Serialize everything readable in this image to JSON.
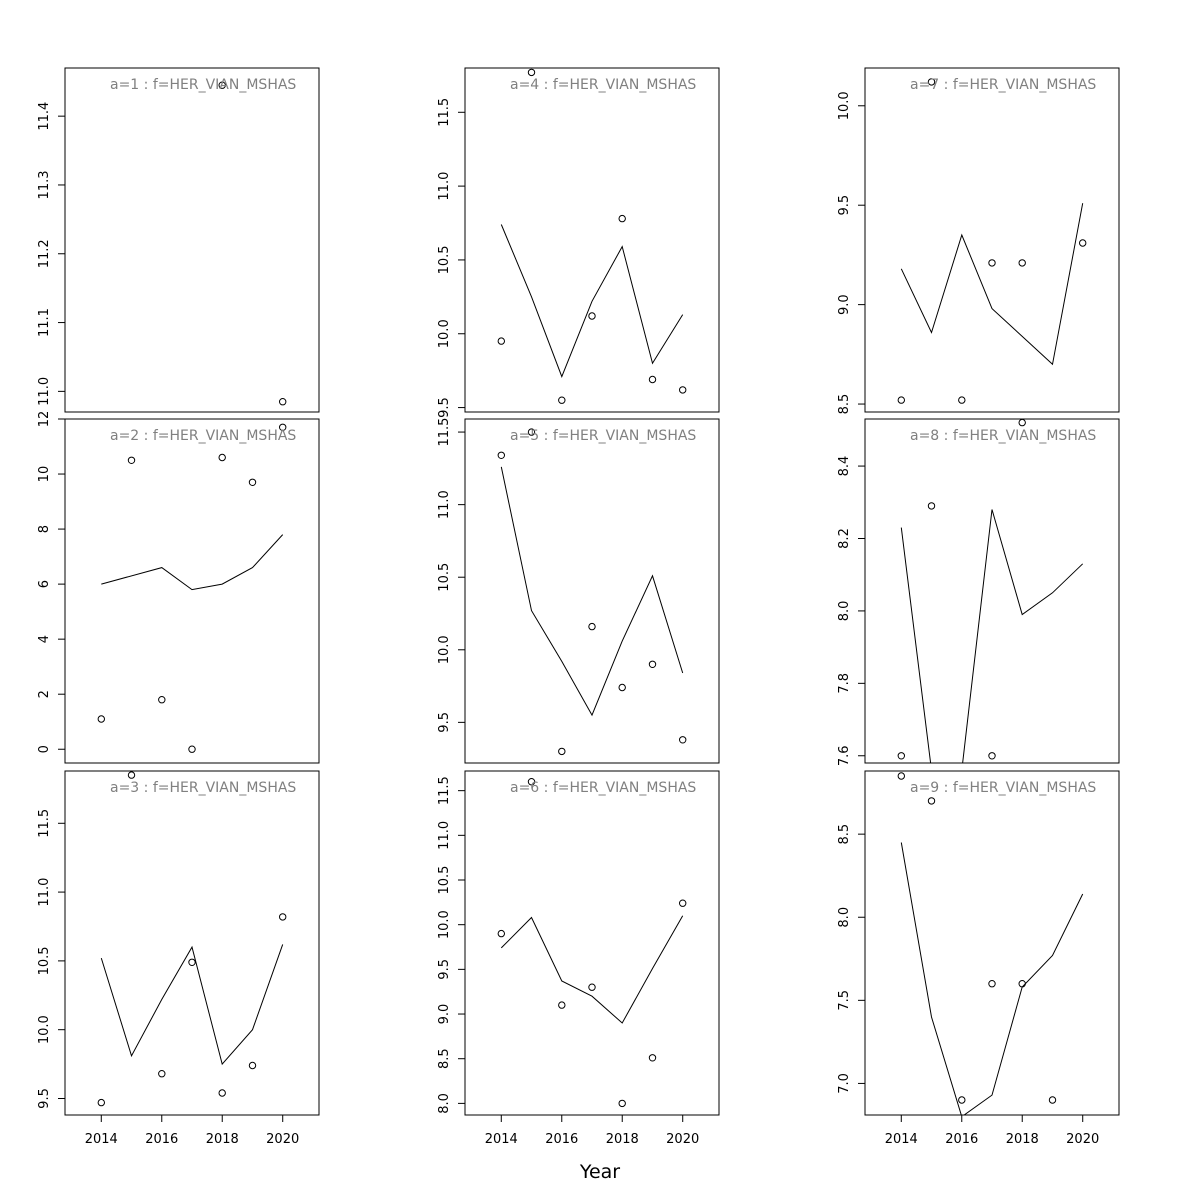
{
  "figure": {
    "xlabel": "Year",
    "panel_title_color": "#808080",
    "line_color": "#000000",
    "point_color": "#000000"
  },
  "chart_data": [
    {
      "type": "line",
      "title": "a=1 : f=HER_VIAN_MSHAS",
      "x": [
        2014,
        2015,
        2016,
        2017,
        2018,
        2019,
        2020
      ],
      "points": [
        [
          2018,
          11.445
        ],
        [
          2020,
          10.985
        ]
      ],
      "line": [],
      "xlim": [
        2012.8,
        2021.2
      ],
      "ylim": [
        10.97,
        11.47
      ],
      "xticks": [
        2014,
        2016,
        2018,
        2020
      ],
      "yticks": [
        11.0,
        11.1,
        11.2,
        11.3,
        11.4
      ],
      "ytick_labels": [
        "11.0",
        "11.1",
        "11.2",
        "11.3",
        "11.4"
      ]
    },
    {
      "type": "line",
      "title": "a=2 : f=HER_VIAN_MSHAS",
      "x": [
        2014,
        2015,
        2016,
        2017,
        2018,
        2019,
        2020
      ],
      "points": [
        [
          2014,
          1.1
        ],
        [
          2015,
          10.5
        ],
        [
          2016,
          1.8
        ],
        [
          2017,
          0.0
        ],
        [
          2018,
          10.6
        ],
        [
          2019,
          9.7
        ],
        [
          2020,
          11.7
        ]
      ],
      "line": [
        [
          2014,
          6.0
        ],
        [
          2016,
          6.6
        ],
        [
          2017,
          5.8
        ],
        [
          2018,
          6.0
        ],
        [
          2019,
          6.6
        ],
        [
          2020,
          7.8
        ]
      ],
      "xlim": [
        2012.8,
        2021.2
      ],
      "ylim": [
        -0.5,
        12.0
      ],
      "xticks": [
        2014,
        2016,
        2018,
        2020
      ],
      "yticks": [
        0,
        2,
        4,
        6,
        8,
        10,
        12
      ],
      "ytick_labels": [
        "0",
        "2",
        "4",
        "6",
        "8",
        "10",
        "12"
      ]
    },
    {
      "type": "line",
      "title": "a=3 : f=HER_VIAN_MSHAS",
      "x": [
        2014,
        2015,
        2016,
        2017,
        2018,
        2019,
        2020
      ],
      "points": [
        [
          2014,
          9.47
        ],
        [
          2015,
          11.85
        ],
        [
          2016,
          9.68
        ],
        [
          2017,
          10.49
        ],
        [
          2018,
          9.54
        ],
        [
          2019,
          9.74
        ],
        [
          2020,
          10.82
        ]
      ],
      "line": [
        [
          2014,
          10.52
        ],
        [
          2015,
          9.81
        ],
        [
          2016,
          10.22
        ],
        [
          2017,
          10.6
        ],
        [
          2018,
          9.75
        ],
        [
          2019,
          10.0
        ],
        [
          2020,
          10.62
        ]
      ],
      "xlim": [
        2012.8,
        2021.2
      ],
      "ylim": [
        9.38,
        11.88
      ],
      "xticks": [
        2014,
        2016,
        2018,
        2020
      ],
      "yticks": [
        9.5,
        10.0,
        10.5,
        11.0,
        11.5
      ],
      "ytick_labels": [
        "9.5",
        "10.0",
        "10.5",
        "11.0",
        "11.5"
      ]
    },
    {
      "type": "line",
      "title": "a=4 : f=HER_VIAN_MSHAS",
      "x": [
        2014,
        2015,
        2016,
        2017,
        2018,
        2019,
        2020
      ],
      "points": [
        [
          2014,
          9.95
        ],
        [
          2015,
          11.77
        ],
        [
          2016,
          9.55
        ],
        [
          2017,
          10.12
        ],
        [
          2018,
          10.78
        ],
        [
          2019,
          9.69
        ],
        [
          2020,
          9.62
        ]
      ],
      "line": [
        [
          2014,
          10.74
        ],
        [
          2015,
          10.25
        ],
        [
          2016,
          9.71
        ],
        [
          2017,
          10.22
        ],
        [
          2018,
          10.59
        ],
        [
          2019,
          9.8
        ],
        [
          2020,
          10.13
        ]
      ],
      "xlim": [
        2012.8,
        2021.2
      ],
      "ylim": [
        9.47,
        11.8
      ],
      "xticks": [
        2014,
        2016,
        2018,
        2020
      ],
      "yticks": [
        9.5,
        10.0,
        10.5,
        11.0,
        11.5
      ],
      "ytick_labels": [
        "9.5",
        "10.0",
        "10.5",
        "11.0",
        "11.5"
      ]
    },
    {
      "type": "line",
      "title": "a=5 : f=HER_VIAN_MSHAS",
      "x": [
        2014,
        2015,
        2016,
        2017,
        2018,
        2019,
        2020
      ],
      "points": [
        [
          2014,
          11.34
        ],
        [
          2015,
          11.5
        ],
        [
          2016,
          9.3
        ],
        [
          2017,
          10.16
        ],
        [
          2018,
          9.74
        ],
        [
          2019,
          9.9
        ],
        [
          2020,
          9.38
        ]
      ],
      "line": [
        [
          2014,
          11.26
        ],
        [
          2015,
          10.27
        ],
        [
          2016,
          9.92
        ],
        [
          2017,
          9.55
        ],
        [
          2018,
          10.06
        ],
        [
          2019,
          10.51
        ],
        [
          2020,
          9.84
        ]
      ],
      "xlim": [
        2012.8,
        2021.2
      ],
      "ylim": [
        9.22,
        11.59
      ],
      "xticks": [
        2014,
        2016,
        2018,
        2020
      ],
      "yticks": [
        9.5,
        10.0,
        10.5,
        11.0,
        11.5
      ],
      "ytick_labels": [
        "9.5",
        "10.0",
        "10.5",
        "11.0",
        "11.5"
      ]
    },
    {
      "type": "line",
      "title": "a=6 : f=HER_VIAN_MSHAS",
      "x": [
        2014,
        2015,
        2016,
        2017,
        2018,
        2019,
        2020
      ],
      "points": [
        [
          2014,
          9.9
        ],
        [
          2015,
          11.6
        ],
        [
          2016,
          9.1
        ],
        [
          2017,
          9.3
        ],
        [
          2018,
          8.0
        ],
        [
          2019,
          8.51
        ],
        [
          2020,
          10.24
        ]
      ],
      "line": [
        [
          2014,
          9.74
        ],
        [
          2015,
          10.08
        ],
        [
          2016,
          9.37
        ],
        [
          2017,
          9.2
        ],
        [
          2018,
          8.9
        ],
        [
          2019,
          9.51
        ],
        [
          2020,
          10.1
        ]
      ],
      "xlim": [
        2012.8,
        2021.2
      ],
      "ylim": [
        7.87,
        11.72
      ],
      "xticks": [
        2014,
        2016,
        2018,
        2020
      ],
      "yticks": [
        8.0,
        8.5,
        9.0,
        9.5,
        10.0,
        10.5,
        11.0,
        11.5
      ],
      "ytick_labels": [
        "8.0",
        "8.5",
        "9.0",
        "9.5",
        "10.0",
        "10.5",
        "11.0",
        "11.5"
      ]
    },
    {
      "type": "line",
      "title": "a=7 : f=HER_VIAN_MSHAS",
      "x": [
        2014,
        2015,
        2016,
        2017,
        2018,
        2019,
        2020
      ],
      "points": [
        [
          2014,
          8.52
        ],
        [
          2015,
          10.12
        ],
        [
          2016,
          8.52
        ],
        [
          2017,
          9.21
        ],
        [
          2018,
          9.21
        ],
        [
          2020,
          9.31
        ]
      ],
      "line": [
        [
          2014,
          9.18
        ],
        [
          2015,
          8.86
        ],
        [
          2016,
          9.35
        ],
        [
          2017,
          8.98
        ],
        [
          2018,
          8.84
        ],
        [
          2019,
          8.7
        ],
        [
          2020,
          9.51
        ]
      ],
      "xlim": [
        2012.8,
        2021.2
      ],
      "ylim": [
        8.46,
        10.19
      ],
      "xticks": [
        2014,
        2016,
        2018,
        2020
      ],
      "yticks": [
        8.5,
        9.0,
        9.5,
        10.0
      ],
      "ytick_labels": [
        "8.5",
        "9.0",
        "9.5",
        "10.0"
      ]
    },
    {
      "type": "line",
      "title": "a=8 : f=HER_VIAN_MSHAS",
      "x": [
        2014,
        2015,
        2016,
        2017,
        2018,
        2019,
        2020
      ],
      "points": [
        [
          2014,
          7.6
        ],
        [
          2015,
          8.29
        ],
        [
          2017,
          7.6
        ],
        [
          2018,
          8.52
        ]
      ],
      "line": [
        [
          2014,
          8.23
        ],
        [
          2015,
          7.56
        ],
        [
          2016,
          7.56
        ],
        [
          2017,
          8.28
        ],
        [
          2018,
          7.99
        ],
        [
          2019,
          8.05
        ],
        [
          2020,
          8.13
        ]
      ],
      "xlim": [
        2012.8,
        2021.2
      ],
      "ylim": [
        7.58,
        8.53
      ],
      "xticks": [
        2014,
        2016,
        2018,
        2020
      ],
      "yticks": [
        7.6,
        7.8,
        8.0,
        8.2,
        8.4
      ],
      "ytick_labels": [
        "7.6",
        "7.8",
        "8.0",
        "8.2",
        "8.4"
      ]
    },
    {
      "type": "line",
      "title": "a=9 : f=HER_VIAN_MSHAS",
      "x": [
        2014,
        2015,
        2016,
        2017,
        2018,
        2019,
        2020
      ],
      "points": [
        [
          2014,
          8.85
        ],
        [
          2015,
          8.7
        ],
        [
          2016,
          6.9
        ],
        [
          2017,
          7.6
        ],
        [
          2018,
          7.6
        ],
        [
          2019,
          6.9
        ]
      ],
      "line": [
        [
          2014,
          8.45
        ],
        [
          2015,
          7.4
        ],
        [
          2016,
          6.8
        ],
        [
          2017,
          6.93
        ],
        [
          2018,
          7.58
        ],
        [
          2019,
          7.77
        ],
        [
          2020,
          8.14
        ]
      ],
      "xlim": [
        2012.8,
        2021.2
      ],
      "ylim": [
        6.81,
        8.88
      ],
      "xticks": [
        2014,
        2016,
        2018,
        2020
      ],
      "yticks": [
        7.0,
        7.5,
        8.0,
        8.5
      ],
      "ytick_labels": [
        "7.0",
        "7.5",
        "8.0",
        "8.5"
      ]
    }
  ]
}
